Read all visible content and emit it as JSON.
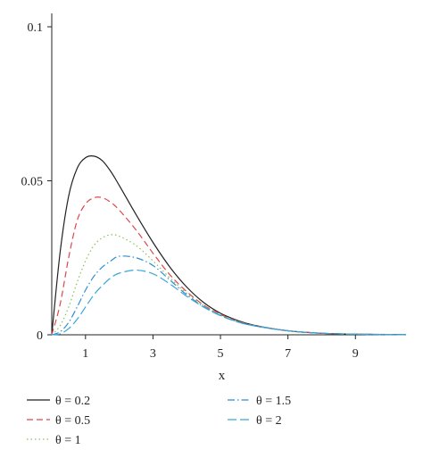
{
  "chart_data": {
    "type": "line",
    "title": "",
    "xlabel": "x",
    "ylabel": "",
    "xlim": [
      0,
      10.5
    ],
    "ylim": [
      0,
      0.1
    ],
    "x_ticks": [
      1,
      3,
      5,
      7,
      9
    ],
    "x_tick_labels": [
      "1",
      "3",
      "5",
      "7",
      "9"
    ],
    "y_ticks": [
      0,
      0.05,
      0.1
    ],
    "y_tick_labels": [
      "0",
      "0.05",
      "0.1"
    ],
    "grid": false,
    "legend_placement": "bottom",
    "x": [
      0,
      0.25,
      0.5,
      0.75,
      1,
      1.25,
      1.5,
      1.75,
      2,
      2.5,
      3,
      3.5,
      4,
      4.5,
      5,
      5.5,
      6,
      7,
      8,
      9,
      10,
      10.5
    ],
    "series": [
      {
        "name": "θ = 0.2",
        "color": "#222222",
        "dash": "solid",
        "values": [
          0,
          0.027,
          0.045,
          0.054,
          0.0575,
          0.058,
          0.0565,
          0.053,
          0.0485,
          0.039,
          0.03,
          0.022,
          0.0155,
          0.0105,
          0.007,
          0.0047,
          0.0031,
          0.0013,
          0.0005,
          0.0002,
          0.0001,
          5e-05
        ]
      },
      {
        "name": "θ = 0.5",
        "color": "#e0474c",
        "dash": "dashed",
        "values": [
          0,
          0.01,
          0.025,
          0.037,
          0.0425,
          0.0445,
          0.0445,
          0.043,
          0.0405,
          0.034,
          0.0265,
          0.0195,
          0.014,
          0.0097,
          0.0066,
          0.0045,
          0.003,
          0.0013,
          0.0005,
          0.0002,
          0.0001,
          5e-05
        ]
      },
      {
        "name": "θ = 1",
        "color": "#8bbf5a",
        "dash": "dotted",
        "values": [
          0,
          0.003,
          0.009,
          0.017,
          0.024,
          0.029,
          0.0315,
          0.0325,
          0.032,
          0.029,
          0.024,
          0.0185,
          0.0135,
          0.0095,
          0.0065,
          0.0044,
          0.003,
          0.0013,
          0.0005,
          0.0002,
          0.0001,
          5e-05
        ]
      },
      {
        "name": "θ = 1.5",
        "color": "#2f8fd0",
        "dash": "dashdot",
        "values": [
          0,
          0.001,
          0.004,
          0.009,
          0.0145,
          0.019,
          0.022,
          0.024,
          0.0255,
          0.025,
          0.0225,
          0.0178,
          0.013,
          0.0092,
          0.0063,
          0.0043,
          0.0029,
          0.0013,
          0.0005,
          0.0002,
          0.0001,
          5e-05
        ]
      },
      {
        "name": "θ = 2",
        "color": "#3aa6d9",
        "dash": "longdash",
        "values": [
          0,
          0.0003,
          0.002,
          0.005,
          0.009,
          0.013,
          0.016,
          0.0185,
          0.02,
          0.021,
          0.0198,
          0.0165,
          0.0125,
          0.009,
          0.0062,
          0.0042,
          0.0029,
          0.0013,
          0.0005,
          0.0002,
          0.0001,
          5e-05
        ]
      }
    ]
  }
}
